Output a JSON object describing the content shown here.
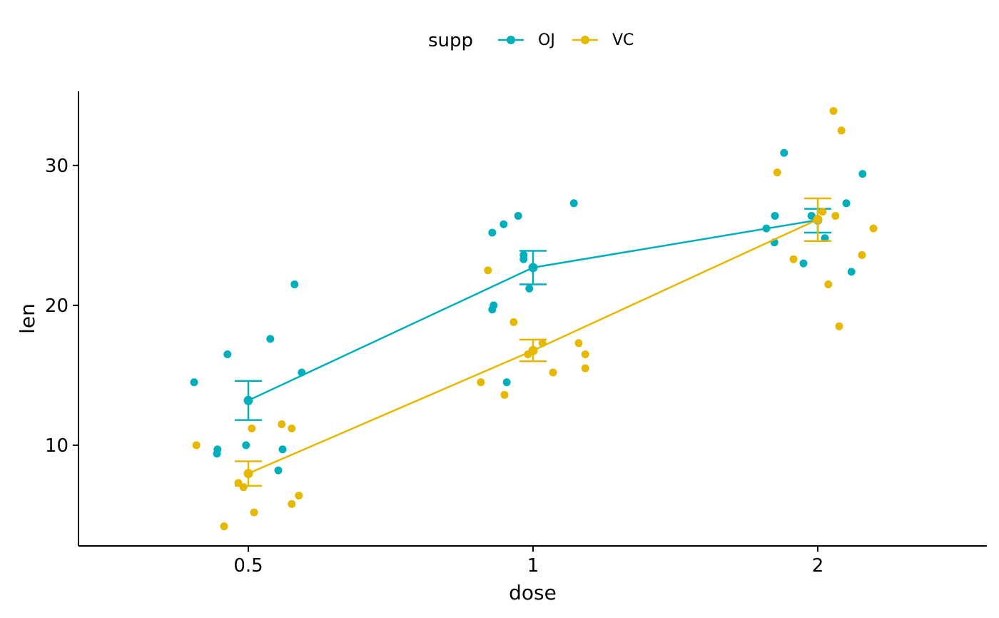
{
  "chart_data": {
    "type": "line",
    "x_categories": [
      "0.5",
      "1",
      "2"
    ],
    "xlabel": "dose",
    "ylabel": "len",
    "ylim": [
      2.8,
      35.3
    ],
    "yticks": [
      10,
      20,
      30
    ],
    "legend": {
      "title": "supp",
      "position": "top"
    },
    "series": [
      {
        "name": "OJ",
        "color": "#00AFBB",
        "means": [
          13.2,
          22.7,
          26.1
        ],
        "error_low": [
          11.8,
          21.5,
          25.2
        ],
        "error_high": [
          14.6,
          23.9,
          26.9
        ],
        "points": [
          {
            "x": "0.5",
            "offset": -0.19,
            "y": 14.5
          },
          {
            "x": "0.5",
            "offset": -0.11,
            "y": 9.4
          },
          {
            "x": "0.5",
            "offset": -0.108,
            "y": 9.7
          },
          {
            "x": "0.5",
            "offset": -0.073,
            "y": 16.5
          },
          {
            "x": "0.5",
            "offset": -0.008,
            "y": 10.0
          },
          {
            "x": "0.5",
            "offset": 0.077,
            "y": 17.6
          },
          {
            "x": "0.5",
            "offset": 0.105,
            "y": 8.2
          },
          {
            "x": "0.5",
            "offset": 0.12,
            "y": 9.7
          },
          {
            "x": "0.5",
            "offset": 0.162,
            "y": 21.5
          },
          {
            "x": "0.5",
            "offset": 0.187,
            "y": 15.2
          },
          {
            "x": "1",
            "offset": -0.143,
            "y": 25.2
          },
          {
            "x": "1",
            "offset": -0.143,
            "y": 19.7
          },
          {
            "x": "1",
            "offset": -0.138,
            "y": 20.0
          },
          {
            "x": "1",
            "offset": -0.103,
            "y": 25.8
          },
          {
            "x": "1",
            "offset": -0.092,
            "y": 14.5
          },
          {
            "x": "1",
            "offset": -0.052,
            "y": 26.4
          },
          {
            "x": "1",
            "offset": -0.033,
            "y": 23.6
          },
          {
            "x": "1",
            "offset": -0.033,
            "y": 23.3
          },
          {
            "x": "1",
            "offset": -0.013,
            "y": 21.2
          },
          {
            "x": "1",
            "offset": 0.143,
            "y": 27.3
          },
          {
            "x": "2",
            "offset": -0.18,
            "y": 25.5
          },
          {
            "x": "2",
            "offset": -0.15,
            "y": 26.4
          },
          {
            "x": "2",
            "offset": -0.152,
            "y": 24.5
          },
          {
            "x": "2",
            "offset": -0.118,
            "y": 30.9
          },
          {
            "x": "2",
            "offset": -0.05,
            "y": 23.0
          },
          {
            "x": "2",
            "offset": -0.022,
            "y": 26.4
          },
          {
            "x": "2",
            "offset": 0.025,
            "y": 24.8
          },
          {
            "x": "2",
            "offset": 0.1,
            "y": 27.3
          },
          {
            "x": "2",
            "offset": 0.118,
            "y": 22.4
          },
          {
            "x": "2",
            "offset": 0.157,
            "y": 29.4
          }
        ]
      },
      {
        "name": "VC",
        "color": "#E7B800",
        "means": [
          7.98,
          16.77,
          26.14
        ],
        "error_low": [
          7.1,
          16.0,
          24.6
        ],
        "error_high": [
          8.85,
          17.55,
          27.65
        ],
        "points": [
          {
            "x": "0.5",
            "offset": -0.182,
            "y": 10.0
          },
          {
            "x": "0.5",
            "offset": -0.085,
            "y": 4.2
          },
          {
            "x": "0.5",
            "offset": -0.035,
            "y": 7.3
          },
          {
            "x": "0.5",
            "offset": -0.017,
            "y": 7.0
          },
          {
            "x": "0.5",
            "offset": 0.0,
            "y": 8.0
          },
          {
            "x": "0.5",
            "offset": 0.012,
            "y": 11.2
          },
          {
            "x": "0.5",
            "offset": 0.02,
            "y": 5.2
          },
          {
            "x": "0.5",
            "offset": 0.117,
            "y": 11.5
          },
          {
            "x": "0.5",
            "offset": 0.152,
            "y": 11.2
          },
          {
            "x": "0.5",
            "offset": 0.152,
            "y": 5.8
          },
          {
            "x": "0.5",
            "offset": 0.177,
            "y": 6.4
          },
          {
            "x": "1",
            "offset": -0.183,
            "y": 14.5
          },
          {
            "x": "1",
            "offset": -0.158,
            "y": 22.5
          },
          {
            "x": "1",
            "offset": -0.1,
            "y": 13.6
          },
          {
            "x": "1",
            "offset": -0.068,
            "y": 18.8
          },
          {
            "x": "1",
            "offset": -0.018,
            "y": 16.5
          },
          {
            "x": "1",
            "offset": 0.0,
            "y": 16.8
          },
          {
            "x": "1",
            "offset": 0.033,
            "y": 17.3
          },
          {
            "x": "1",
            "offset": 0.07,
            "y": 15.2
          },
          {
            "x": "1",
            "offset": 0.16,
            "y": 17.3
          },
          {
            "x": "1",
            "offset": 0.183,
            "y": 16.5
          },
          {
            "x": "1",
            "offset": 0.183,
            "y": 15.5
          },
          {
            "x": "2",
            "offset": -0.142,
            "y": 29.5
          },
          {
            "x": "2",
            "offset": -0.085,
            "y": 23.3
          },
          {
            "x": "2",
            "offset": 0.0,
            "y": 26.1
          },
          {
            "x": "2",
            "offset": 0.017,
            "y": 26.7
          },
          {
            "x": "2",
            "offset": 0.037,
            "y": 21.5
          },
          {
            "x": "2",
            "offset": 0.055,
            "y": 33.9
          },
          {
            "x": "2",
            "offset": 0.062,
            "y": 26.4
          },
          {
            "x": "2",
            "offset": 0.083,
            "y": 32.5
          },
          {
            "x": "2",
            "offset": 0.075,
            "y": 18.5
          },
          {
            "x": "2",
            "offset": 0.155,
            "y": 23.6
          },
          {
            "x": "2",
            "offset": 0.195,
            "y": 25.5
          }
        ]
      }
    ]
  }
}
